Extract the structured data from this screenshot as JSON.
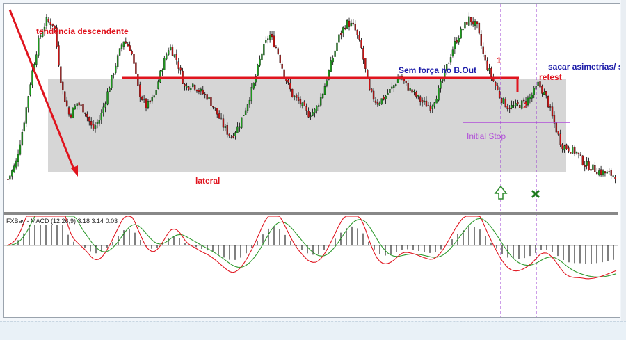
{
  "chart_data": [
    {
      "type": "candlestick",
      "title": "",
      "price_path": [
        12,
        20,
        40,
        65,
        85,
        95,
        93,
        60,
        45,
        52,
        48,
        38,
        44,
        58,
        72,
        85,
        80,
        58,
        50,
        55,
        70,
        82,
        74,
        60,
        62,
        58,
        55,
        48,
        40,
        34,
        40,
        50,
        62,
        78,
        88,
        80,
        66,
        56,
        52,
        46,
        48,
        58,
        72,
        86,
        94,
        92,
        80,
        58,
        52,
        55,
        60,
        66,
        60,
        56,
        52,
        50,
        58,
        70,
        82,
        90,
        96,
        92,
        74,
        65,
        55,
        50,
        50,
        52,
        55,
        62,
        55,
        42,
        30,
        28,
        26,
        20,
        18,
        16,
        15,
        14
      ],
      "candle_colors": {
        "up": "#1e9a1e",
        "down": "#c81414",
        "wick": "#000000"
      },
      "annotations": {
        "downtrend": "tendencia descendente",
        "range": "lateral",
        "weak_breakout": "Sem força no B.Out",
        "asymmetry": "sacar asimetrias/ st",
        "retest": "retest",
        "stop": "Initial Stop",
        "point1": "1",
        "point2": "2"
      },
      "range_box_fill": "#d6d6d6",
      "grid": false,
      "accent_colors": {
        "trendline": "#e0141e",
        "label_blue": "#1a1aa8",
        "stop": "#b14fd8",
        "entry_arrow": "#2e8b2e"
      }
    },
    {
      "type": "line",
      "indicator_label": "FXBay - MACD (12,26,9) 3.18 3.14 0.03",
      "series": [
        {
          "color": "#e0141e"
        },
        {
          "color": "#2e9a2e"
        }
      ],
      "histogram_color": "#000000"
    }
  ]
}
